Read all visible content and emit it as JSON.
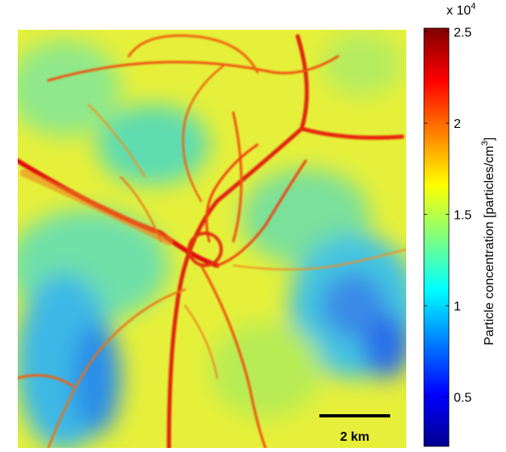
{
  "colorbar": {
    "label": "Particle concentration [particles/cm",
    "label_superscript": "3",
    "label_end": "]",
    "multiplier": "x 10",
    "multiplier_exponent": "4",
    "clim": [
      0.23,
      2.52
    ],
    "ticks": [
      0.5,
      1,
      1.5,
      2,
      2.5
    ]
  },
  "scale_bar": {
    "label": "2 km"
  }
}
